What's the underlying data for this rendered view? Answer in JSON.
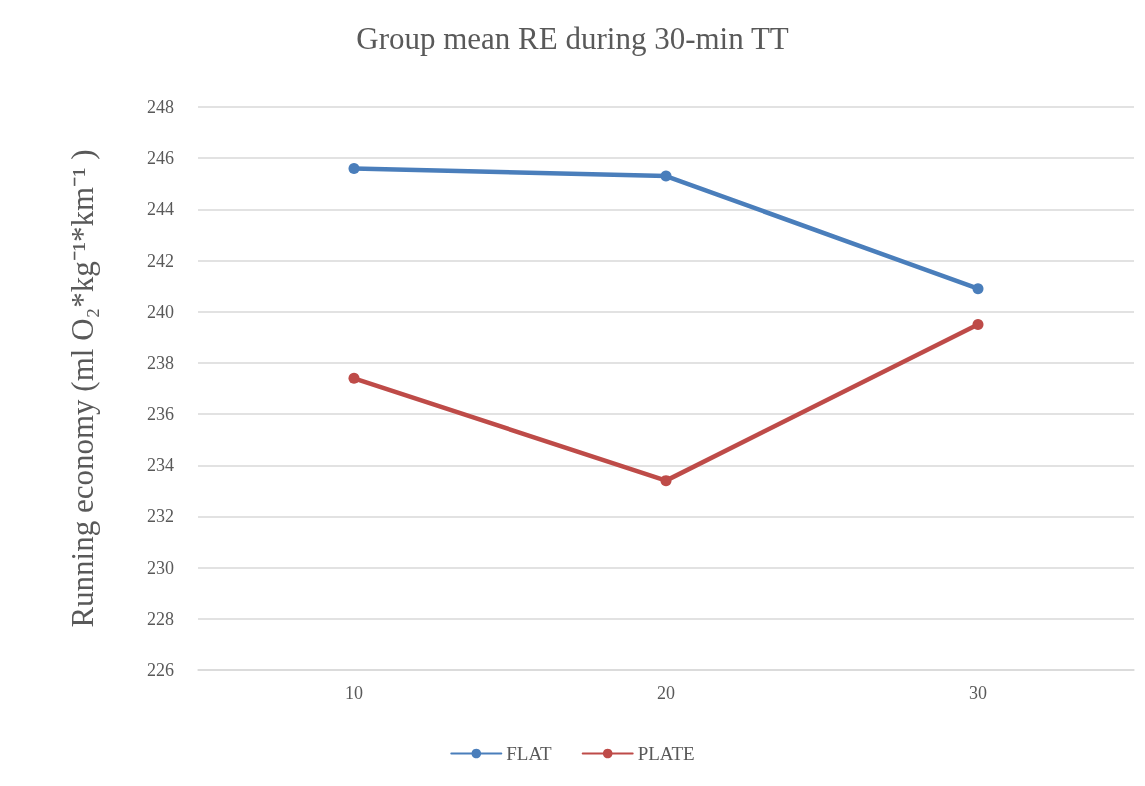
{
  "chart_data": {
    "type": "line",
    "title": "Group mean RE during 30-min TT",
    "ylabel": "Running economy (ml O₂*kg⁻¹*km⁻¹ )",
    "categories": [
      "10",
      "20",
      "30"
    ],
    "series": [
      {
        "name": "FLAT",
        "color": "#4a7ebb",
        "values": [
          245.6,
          245.3,
          240.9
        ]
      },
      {
        "name": "PLATE",
        "color": "#be4b48",
        "values": [
          237.4,
          233.4,
          239.5
        ]
      }
    ],
    "ylim": [
      226,
      248
    ],
    "yticks": [
      226,
      228,
      230,
      232,
      234,
      236,
      238,
      240,
      242,
      244,
      246,
      248
    ],
    "grid": "y",
    "legend": "bottom",
    "marker": "circle",
    "line_style": "solid"
  }
}
